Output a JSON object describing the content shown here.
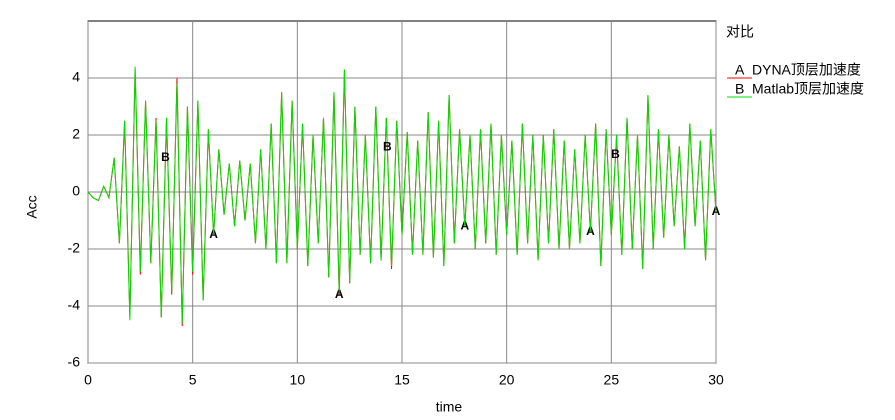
{
  "chart_data": {
    "type": "line",
    "title": "对比",
    "x_label": "time",
    "y_label": "Acc",
    "xlim": [
      0,
      30
    ],
    "ylim": [
      -6,
      6
    ],
    "xticks": [
      0,
      5,
      10,
      15,
      20,
      25,
      30
    ],
    "yticks": [
      -6,
      -4,
      -2,
      0,
      2,
      4
    ],
    "grid": true,
    "x": [
      0,
      0.25,
      0.5,
      0.75,
      1,
      1.25,
      1.5,
      1.75,
      2,
      2.25,
      2.5,
      2.75,
      3,
      3.25,
      3.5,
      3.75,
      4,
      4.25,
      4.5,
      4.75,
      5,
      5.25,
      5.5,
      5.75,
      6,
      6.25,
      6.5,
      6.75,
      7,
      7.25,
      7.5,
      7.75,
      8,
      8.25,
      8.5,
      8.75,
      9,
      9.25,
      9.5,
      9.75,
      10,
      10.25,
      10.5,
      10.75,
      11,
      11.25,
      11.5,
      11.75,
      12,
      12.25,
      12.5,
      12.75,
      13,
      13.25,
      13.5,
      13.75,
      14,
      14.25,
      14.5,
      14.75,
      15,
      15.25,
      15.5,
      15.75,
      16,
      16.25,
      16.5,
      16.75,
      17,
      17.25,
      17.5,
      17.75,
      18,
      18.25,
      18.5,
      18.75,
      19,
      19.25,
      19.5,
      19.75,
      20,
      20.25,
      20.5,
      20.75,
      21,
      21.25,
      21.5,
      21.75,
      22,
      22.25,
      22.5,
      22.75,
      23,
      23.25,
      23.5,
      23.75,
      24,
      24.25,
      24.5,
      24.75,
      25,
      25.25,
      25.5,
      25.75,
      26,
      26.25,
      26.5,
      26.75,
      27,
      27.25,
      27.5,
      27.75,
      28,
      28.25,
      28.5,
      28.75,
      29,
      29.25,
      29.5,
      29.75,
      30
    ],
    "series": [
      {
        "name": "DYNA顶层加速度",
        "marker": "A",
        "marker_x": [
          6,
          12,
          18,
          24,
          30
        ],
        "color": "#ff0000",
        "values": [
          0,
          -0.2,
          -0.3,
          0.2,
          -0.2,
          1.2,
          -1.8,
          2.5,
          -4.4,
          4.3,
          -2.9,
          3.2,
          -2.5,
          2.6,
          -4.4,
          2.6,
          -3.6,
          4.0,
          -4.7,
          3.0,
          -2.9,
          3.2,
          -3.8,
          2.2,
          -1.5,
          1.5,
          -0.8,
          1.0,
          -1.2,
          1.1,
          -1.0,
          1.0,
          -1.8,
          1.5,
          -2.0,
          2.4,
          -2.5,
          3.5,
          -2.5,
          3.2,
          -2.0,
          2.4,
          -2.6,
          2.0,
          -1.8,
          2.6,
          -3.0,
          3.5,
          -3.6,
          4.3,
          -3.2,
          3.0,
          -2.2,
          2.0,
          -2.5,
          3.0,
          -2.4,
          2.6,
          -2.7,
          2.5,
          -1.5,
          2.1,
          -2.2,
          1.8,
          -2.2,
          2.8,
          -2.3,
          2.5,
          -2.6,
          3.4,
          -1.8,
          2.2,
          -1.2,
          2.0,
          -2.0,
          2.2,
          -1.8,
          2.4,
          -2.2,
          2.0,
          -1.5,
          1.8,
          -2.2,
          2.4,
          -1.8,
          2.0,
          -2.4,
          2.0,
          -1.8,
          2.2,
          -2.0,
          1.8,
          -2.0,
          1.5,
          -1.8,
          2.0,
          -1.4,
          2.4,
          -2.6,
          2.2,
          -1.5,
          2.0,
          -2.2,
          2.6,
          -2.0,
          2.0,
          -2.7,
          3.4,
          -2.0,
          2.2,
          -1.6,
          2.0,
          -1.2,
          1.6,
          -2.0,
          2.4,
          -1.2,
          1.8,
          -2.4,
          2.2,
          -0.7
        ]
      },
      {
        "name": "Matlab顶层加速度",
        "marker": "B",
        "marker_x": [
          3.7,
          14.3,
          25.2
        ],
        "color": "#00dd00",
        "values": [
          0,
          -0.2,
          -0.3,
          0.2,
          -0.2,
          1.2,
          -1.8,
          2.5,
          -4.5,
          4.4,
          -2.8,
          3.2,
          -2.5,
          2.5,
          -4.4,
          2.6,
          -3.5,
          3.8,
          -4.6,
          3.0,
          -2.8,
          3.2,
          -3.8,
          2.2,
          -1.5,
          1.5,
          -0.8,
          1.0,
          -1.2,
          1.1,
          -1.0,
          1.0,
          -1.8,
          1.5,
          -2.0,
          2.4,
          -2.5,
          3.5,
          -2.5,
          3.2,
          -2.0,
          2.4,
          -2.6,
          2.0,
          -1.8,
          2.6,
          -3.0,
          3.5,
          -3.5,
          4.3,
          -3.2,
          3.0,
          -2.2,
          2.0,
          -2.5,
          3.0,
          -2.4,
          2.6,
          -2.6,
          2.5,
          -1.5,
          2.1,
          -2.2,
          1.8,
          -2.2,
          2.8,
          -2.3,
          2.5,
          -2.6,
          3.4,
          -1.8,
          2.2,
          -1.2,
          2.0,
          -2.0,
          2.2,
          -1.8,
          2.4,
          -2.2,
          2.0,
          -1.5,
          1.8,
          -2.2,
          2.4,
          -1.8,
          2.0,
          -2.4,
          2.0,
          -1.8,
          2.2,
          -2.0,
          1.8,
          -2.0,
          1.5,
          -1.8,
          2.0,
          -1.4,
          2.4,
          -2.6,
          2.2,
          -1.5,
          2.0,
          -2.2,
          2.6,
          -2.0,
          2.0,
          -2.7,
          3.4,
          -2.0,
          2.2,
          -1.6,
          2.0,
          -1.2,
          1.6,
          -2.0,
          2.4,
          -1.2,
          1.8,
          -2.4,
          2.2,
          -0.7
        ]
      }
    ]
  }
}
